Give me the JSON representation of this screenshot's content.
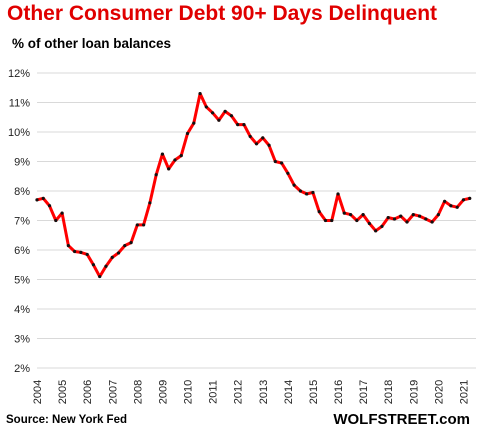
{
  "header": {
    "title": "Other Consumer Debt 90+ Days Delinquent",
    "subtitle": "% of other loan balances"
  },
  "footer": {
    "source": "Source: New York Fed",
    "brand": "WOLFSTREET.com"
  },
  "colors": {
    "title": "#e00000",
    "line": "#ff0000",
    "markers": "#111111",
    "grid": "#d9d9d9"
  },
  "chart_data": {
    "type": "line",
    "title": "Other Consumer Debt 90+ Days Delinquent",
    "subtitle": "% of other loan balances",
    "xlabel": "",
    "ylabel": "",
    "xlim": [
      2004,
      2021.5
    ],
    "ylim": [
      2,
      12
    ],
    "grid": "horizontal",
    "legend": "none",
    "x_ticks": [
      "2004",
      "2005",
      "2006",
      "2007",
      "2008",
      "2009",
      "2010",
      "2011",
      "2012",
      "2013",
      "2014",
      "2015",
      "2016",
      "2017",
      "2018",
      "2019",
      "2020",
      "2021"
    ],
    "y_ticks": [
      "2%",
      "3%",
      "4%",
      "5%",
      "6%",
      "7%",
      "8%",
      "9%",
      "10%",
      "11%",
      "12%"
    ],
    "series": [
      {
        "x": [
          2004,
          2004.25,
          2004.5,
          2004.75,
          2005,
          2005.25,
          2005.5,
          2005.75,
          2006,
          2006.25,
          2006.5,
          2006.75,
          2007,
          2007.25,
          2007.5,
          2007.75,
          2008,
          2008.25,
          2008.5,
          2008.75,
          2009,
          2009.25,
          2009.5,
          2009.75,
          2010,
          2010.25,
          2010.5,
          2010.75,
          2011,
          2011.25,
          2011.5,
          2011.75,
          2012,
          2012.25,
          2012.5,
          2012.75,
          2013,
          2013.25,
          2013.5,
          2013.75,
          2014,
          2014.25,
          2014.5,
          2014.75,
          2015,
          2015.25,
          2015.5,
          2015.75,
          2016,
          2016.25,
          2016.5,
          2016.75,
          2017,
          2017.25,
          2017.5,
          2017.75,
          2018,
          2018.25,
          2018.5,
          2018.75,
          2019,
          2019.25,
          2019.5,
          2019.75,
          2020,
          2020.25,
          2020.5,
          2020.75,
          2021,
          2021.25
        ],
        "values": [
          7.7,
          7.75,
          7.5,
          7.0,
          7.25,
          6.15,
          5.95,
          5.92,
          5.85,
          5.5,
          5.1,
          5.45,
          5.75,
          5.9,
          6.15,
          6.25,
          6.85,
          6.85,
          7.6,
          8.55,
          9.25,
          8.75,
          9.05,
          9.2,
          9.95,
          10.3,
          11.3,
          10.85,
          10.65,
          10.4,
          10.7,
          10.55,
          10.25,
          10.25,
          9.85,
          9.6,
          9.8,
          9.55,
          9.0,
          8.95,
          8.6,
          8.2,
          8.0,
          7.9,
          7.95,
          7.3,
          7.0,
          7.0,
          7.9,
          7.25,
          7.2,
          7.0,
          7.2,
          6.9,
          6.65,
          6.8,
          7.1,
          7.05,
          7.15,
          6.95,
          7.2,
          7.15,
          7.05,
          6.95,
          7.2,
          7.65,
          7.5,
          7.45,
          7.7,
          7.75
        ]
      }
    ]
  }
}
